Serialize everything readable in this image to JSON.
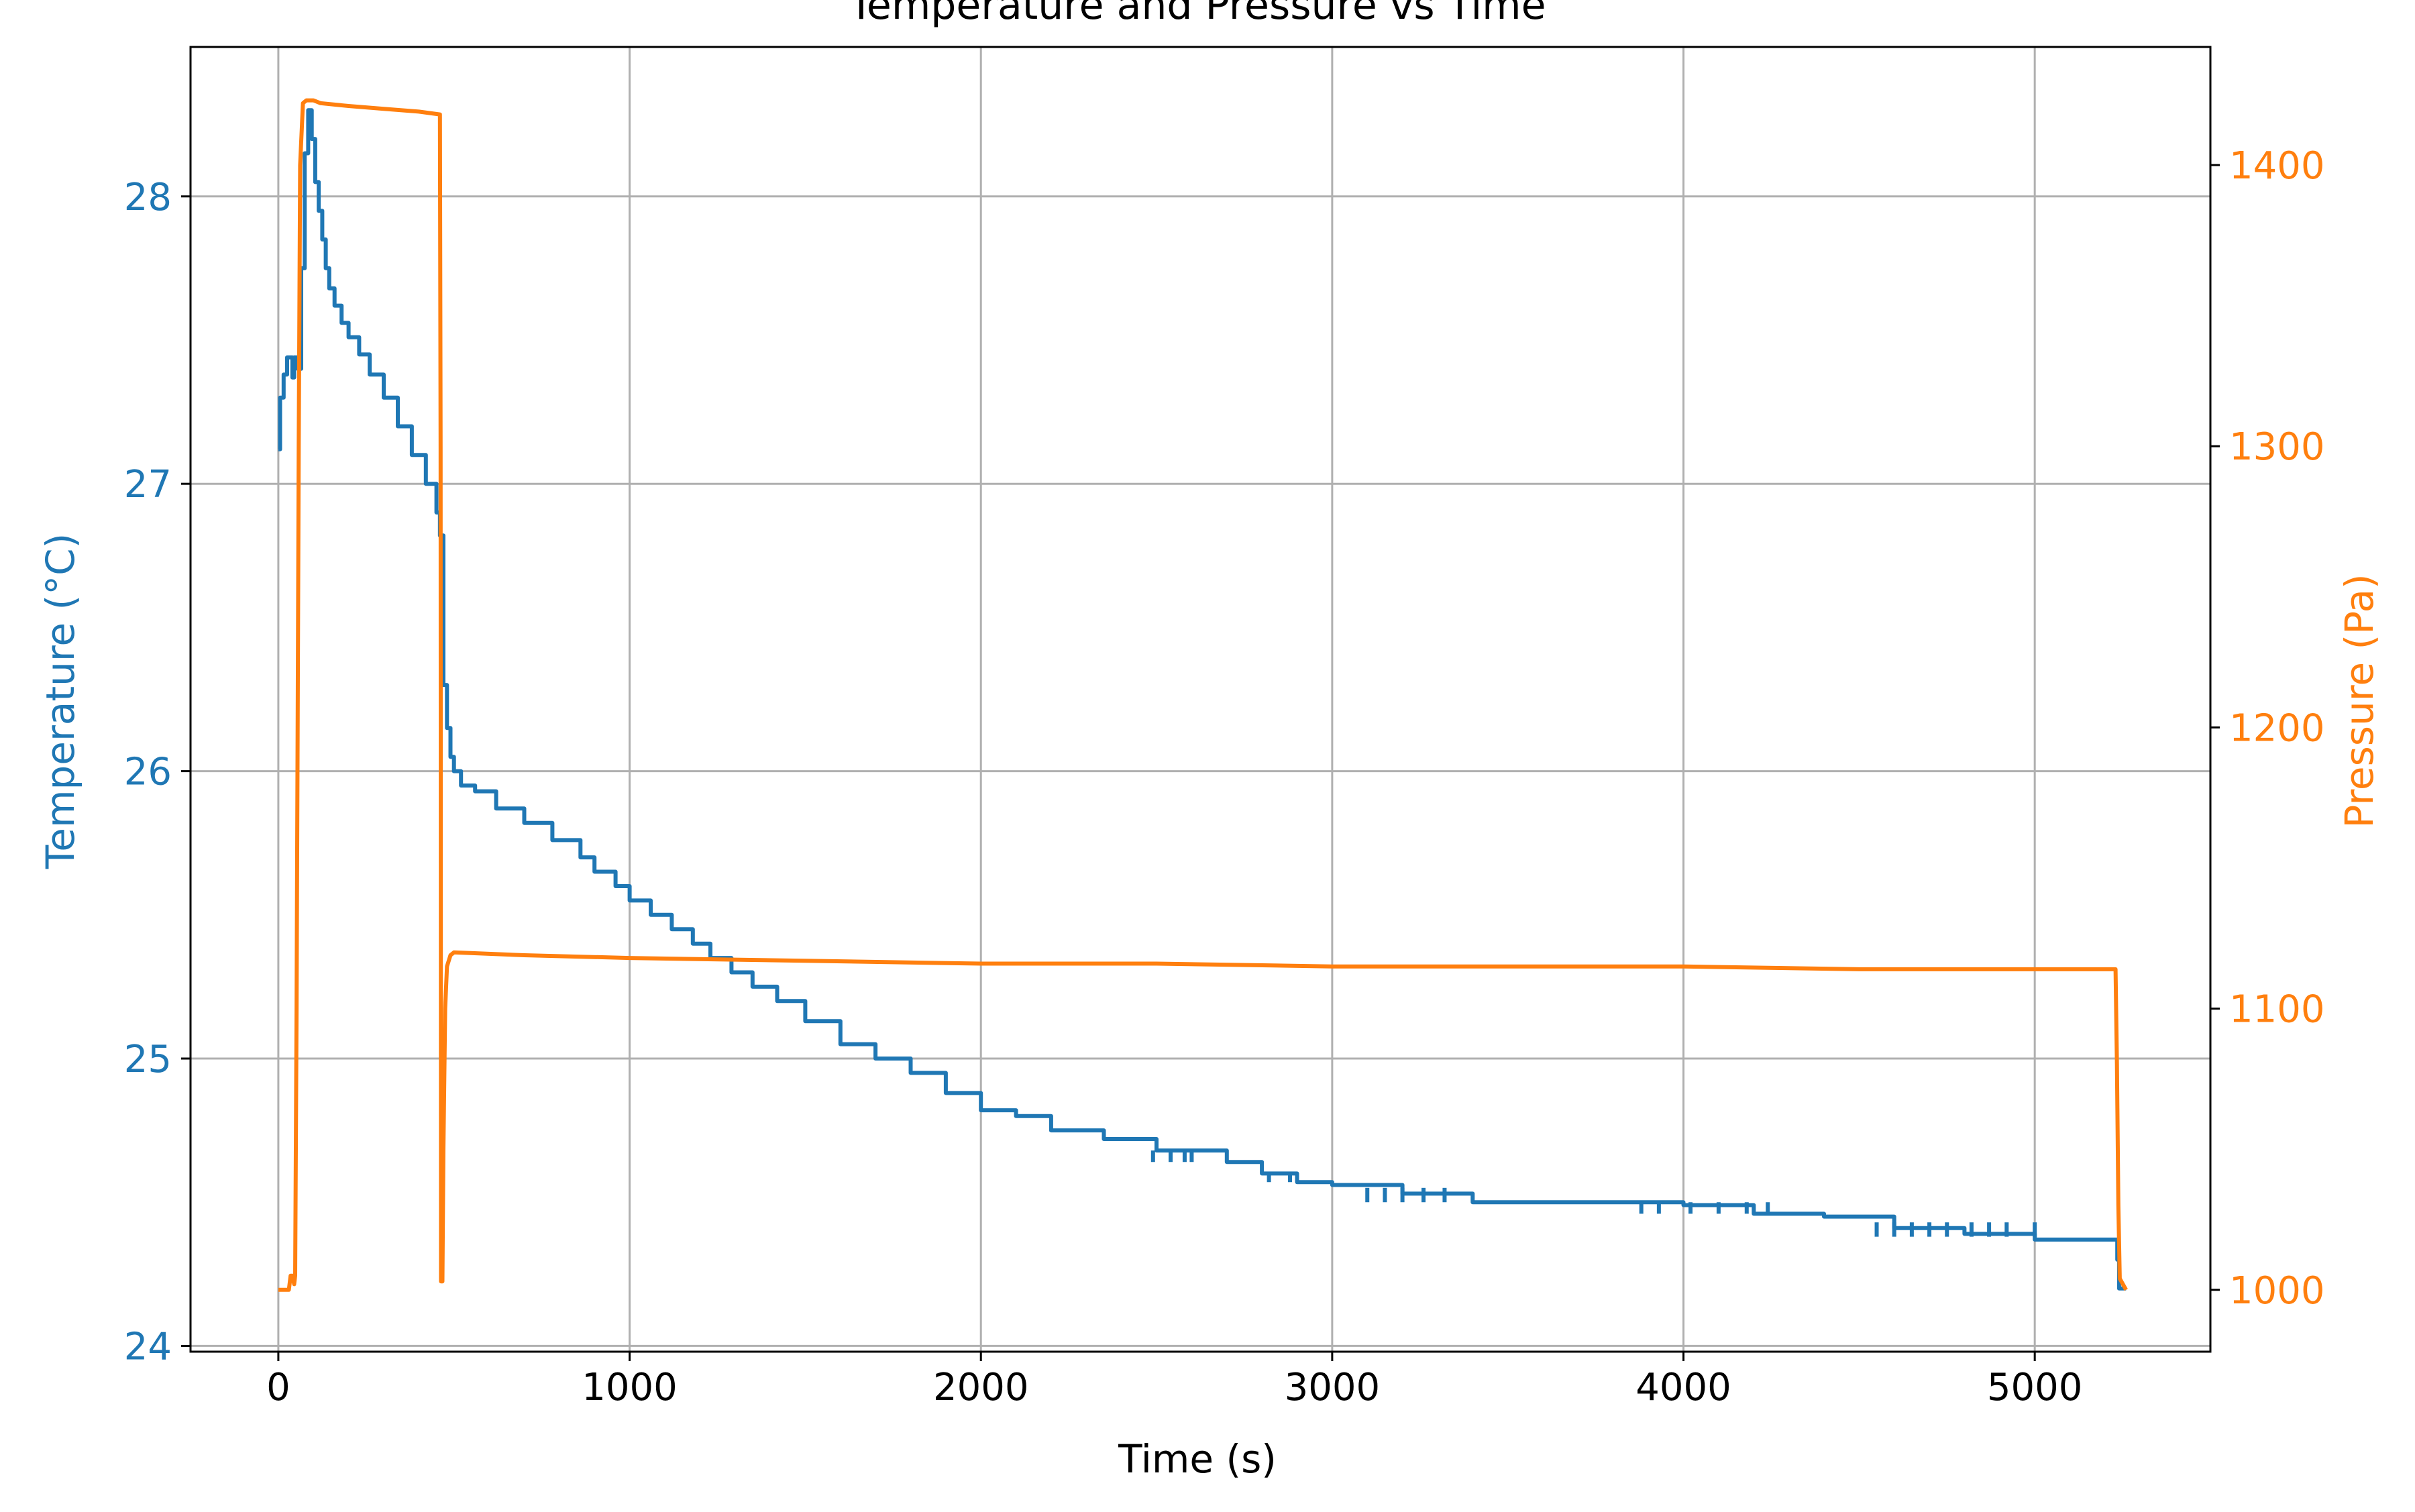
{
  "chart_data": {
    "type": "line",
    "title": "Temperature and Pressure vs Time",
    "xlabel": "Time (s)",
    "xlim": [
      -250,
      5500
    ],
    "x_ticks": [
      0,
      1000,
      2000,
      3000,
      4000,
      5000
    ],
    "x_tick_labels": [
      "0",
      "1000",
      "2000",
      "3000",
      "4000",
      "5000"
    ],
    "grid": true,
    "y_left": {
      "label": "Temperature (°C)",
      "color": "#1f77b4",
      "lim": [
        23.98,
        28.52
      ],
      "ticks": [
        24,
        25,
        26,
        27,
        28
      ],
      "tick_labels": [
        "24",
        "25",
        "26",
        "27",
        "28"
      ]
    },
    "y_right": {
      "label": "Pressure (Pa)",
      "color": "#ff7f0e",
      "lim": [
        978,
        1442
      ],
      "ticks": [
        1000,
        1100,
        1200,
        1300,
        1400
      ],
      "tick_labels": [
        "1000",
        "1100",
        "1200",
        "1300",
        "1400"
      ]
    },
    "series": [
      {
        "axis": "left",
        "color": "#1f77b4",
        "points": [
          [
            0,
            27.12
          ],
          [
            5,
            27.3
          ],
          [
            15,
            27.38
          ],
          [
            25,
            27.44
          ],
          [
            40,
            27.44
          ],
          [
            40,
            27.37
          ],
          [
            45,
            27.44
          ],
          [
            55,
            27.4
          ],
          [
            65,
            27.75
          ],
          [
            75,
            28.15
          ],
          [
            85,
            28.3
          ],
          [
            95,
            28.2
          ],
          [
            105,
            28.05
          ],
          [
            115,
            27.95
          ],
          [
            125,
            27.85
          ],
          [
            135,
            27.75
          ],
          [
            145,
            27.68
          ],
          [
            160,
            27.62
          ],
          [
            180,
            27.56
          ],
          [
            200,
            27.51
          ],
          [
            230,
            27.45
          ],
          [
            260,
            27.38
          ],
          [
            300,
            27.3
          ],
          [
            340,
            27.2
          ],
          [
            380,
            27.1
          ],
          [
            420,
            27.0
          ],
          [
            450,
            26.9
          ],
          [
            460,
            26.82
          ],
          [
            470,
            26.3
          ],
          [
            480,
            26.15
          ],
          [
            490,
            26.05
          ],
          [
            500,
            26.0
          ],
          [
            520,
            25.95
          ],
          [
            560,
            25.93
          ],
          [
            620,
            25.87
          ],
          [
            700,
            25.82
          ],
          [
            760,
            25.82
          ],
          [
            780,
            25.76
          ],
          [
            860,
            25.7
          ],
          [
            900,
            25.65
          ],
          [
            960,
            25.6
          ],
          [
            1000,
            25.55
          ],
          [
            1060,
            25.5
          ],
          [
            1120,
            25.45
          ],
          [
            1180,
            25.4
          ],
          [
            1230,
            25.35
          ],
          [
            1290,
            25.3
          ],
          [
            1350,
            25.25
          ],
          [
            1420,
            25.2
          ],
          [
            1500,
            25.13
          ],
          [
            1600,
            25.05
          ],
          [
            1700,
            25.0
          ],
          [
            1800,
            24.95
          ],
          [
            1900,
            24.88
          ],
          [
            2000,
            24.82
          ],
          [
            2100,
            24.8
          ],
          [
            2200,
            24.75
          ],
          [
            2350,
            24.72
          ],
          [
            2500,
            24.68
          ],
          [
            2700,
            24.64
          ],
          [
            2800,
            24.6
          ],
          [
            2900,
            24.57
          ],
          [
            3000,
            24.56
          ],
          [
            3200,
            24.53
          ],
          [
            3400,
            24.5
          ],
          [
            3600,
            24.5
          ],
          [
            3800,
            24.5
          ],
          [
            4000,
            24.49
          ],
          [
            4200,
            24.46
          ],
          [
            4400,
            24.45
          ],
          [
            4600,
            24.41
          ],
          [
            4800,
            24.39
          ],
          [
            5000,
            24.37
          ],
          [
            5100,
            24.37
          ],
          [
            5230,
            24.37
          ],
          [
            5235,
            24.3
          ],
          [
            5240,
            24.2
          ],
          [
            5260,
            24.2
          ]
        ]
      },
      {
        "axis": "right",
        "color": "#ff7f0e",
        "points": [
          [
            0,
            1000
          ],
          [
            30,
            1000
          ],
          [
            35,
            1005
          ],
          [
            40,
            1005
          ],
          [
            45,
            1002
          ],
          [
            48,
            1005
          ],
          [
            52,
            1100
          ],
          [
            58,
            1300
          ],
          [
            62,
            1400
          ],
          [
            70,
            1422
          ],
          [
            80,
            1423
          ],
          [
            100,
            1423
          ],
          [
            120,
            1422
          ],
          [
            200,
            1421
          ],
          [
            300,
            1420
          ],
          [
            400,
            1419
          ],
          [
            460,
            1418
          ],
          [
            462,
            1300
          ],
          [
            463,
            1003
          ],
          [
            467,
            1003
          ],
          [
            470,
            1050
          ],
          [
            475,
            1100
          ],
          [
            480,
            1115
          ],
          [
            490,
            1119
          ],
          [
            500,
            1120
          ],
          [
            700,
            1119
          ],
          [
            1000,
            1118
          ],
          [
            1500,
            1117
          ],
          [
            2000,
            1116
          ],
          [
            2500,
            1116
          ],
          [
            3000,
            1115
          ],
          [
            3500,
            1115
          ],
          [
            4000,
            1115
          ],
          [
            4500,
            1114
          ],
          [
            5000,
            1114
          ],
          [
            5230,
            1114
          ],
          [
            5234,
            1080
          ],
          [
            5238,
            1030
          ],
          [
            5242,
            1004
          ],
          [
            5260,
            1000
          ]
        ]
      }
    ],
    "dropout_dips": [
      {
        "x": 2490,
        "from": 24.68,
        "to": 24.64
      },
      {
        "x": 2540,
        "from": 24.68,
        "to": 24.64
      },
      {
        "x": 2580,
        "from": 24.68,
        "to": 24.64
      },
      {
        "x": 2600,
        "from": 24.68,
        "to": 24.64
      },
      {
        "x": 2820,
        "from": 24.6,
        "to": 24.57
      },
      {
        "x": 2880,
        "from": 24.6,
        "to": 24.57
      },
      {
        "x": 3100,
        "from": 24.55,
        "to": 24.5
      },
      {
        "x": 3150,
        "from": 24.55,
        "to": 24.5
      },
      {
        "x": 3200,
        "from": 24.55,
        "to": 24.5
      },
      {
        "x": 3260,
        "from": 24.55,
        "to": 24.5
      },
      {
        "x": 3320,
        "from": 24.55,
        "to": 24.5
      },
      {
        "x": 3880,
        "from": 24.5,
        "to": 24.46
      },
      {
        "x": 3930,
        "from": 24.5,
        "to": 24.46
      },
      {
        "x": 4020,
        "from": 24.5,
        "to": 24.46
      },
      {
        "x": 4100,
        "from": 24.5,
        "to": 24.46
      },
      {
        "x": 4180,
        "from": 24.5,
        "to": 24.46
      },
      {
        "x": 4240,
        "from": 24.5,
        "to": 24.46
      },
      {
        "x": 4550,
        "from": 24.43,
        "to": 24.38
      },
      {
        "x": 4600,
        "from": 24.43,
        "to": 24.38
      },
      {
        "x": 4650,
        "from": 24.43,
        "to": 24.38
      },
      {
        "x": 4700,
        "from": 24.43,
        "to": 24.38
      },
      {
        "x": 4750,
        "from": 24.43,
        "to": 24.38
      },
      {
        "x": 4820,
        "from": 24.43,
        "to": 24.38
      },
      {
        "x": 4870,
        "from": 24.43,
        "to": 24.38
      },
      {
        "x": 4920,
        "from": 24.43,
        "to": 24.38
      },
      {
        "x": 5000,
        "from": 24.43,
        "to": 24.38
      }
    ]
  }
}
